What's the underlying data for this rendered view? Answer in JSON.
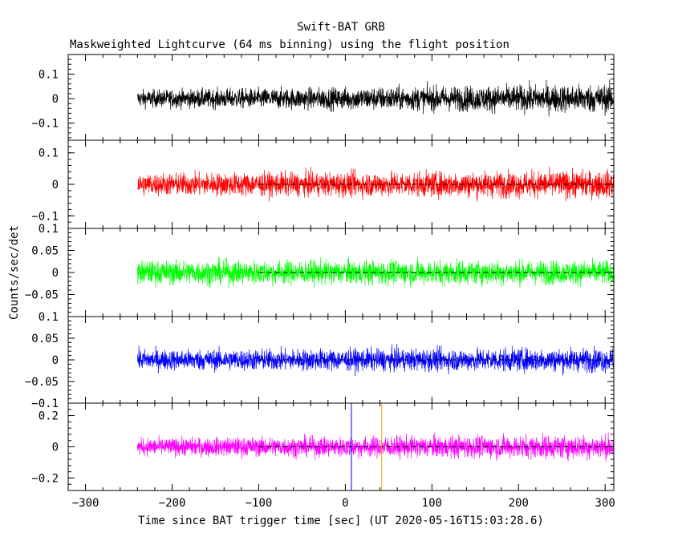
{
  "chart_data": {
    "type": "line",
    "title": "Swift-BAT GRB",
    "subtitle": "Maskweighted Lightcurve (64 ms binning) using the flight position",
    "xlabel": "Time since BAT trigger time [sec] (UT 2020-05-16T15:03:28.6)",
    "ylabel": "Counts/sec/det",
    "xlim": [
      -320,
      310
    ],
    "xticks": [
      -300,
      -200,
      -100,
      0,
      100,
      200,
      300
    ],
    "xtick_labels": [
      "-300",
      "-200",
      "-100",
      "0",
      "100",
      "200",
      "300"
    ],
    "data_range": [
      -240,
      310
    ],
    "binning_s": 0.064,
    "grid": false,
    "markers": [
      {
        "x": 7,
        "color": "#0000ff"
      },
      {
        "x": 42,
        "color": "#ffa500"
      }
    ],
    "panels": [
      {
        "color": "#000000",
        "ylim": [
          -0.17,
          0.18
        ],
        "yticks": [
          -0.1,
          0,
          0.1
        ],
        "ytick_labels": [
          "-0.1",
          "0",
          "0.1"
        ],
        "baseline": null,
        "noise_start": 0.045,
        "noise_end": 0.075
      },
      {
        "color": "#ff0000",
        "ylim": [
          -0.14,
          0.14
        ],
        "yticks": [
          -0.1,
          0,
          0.1
        ],
        "ytick_labels": [
          "-0.1",
          "0",
          "0.1"
        ],
        "baseline": {
          "from": -100,
          "value": 0
        },
        "noise_start": 0.045,
        "noise_end": 0.055
      },
      {
        "color": "#00ff00",
        "ylim": [
          -0.1,
          0.1
        ],
        "yticks": [
          -0.05,
          0,
          0.05,
          0.1
        ],
        "ytick_labels": [
          "-0.05",
          "0",
          "0.05",
          "0.1"
        ],
        "baseline": {
          "from": -100,
          "value": 0
        },
        "noise_start": 0.035,
        "noise_end": 0.035
      },
      {
        "color": "#0000ff",
        "ylim": [
          -0.1,
          0.1
        ],
        "yticks": [
          -0.1,
          -0.05,
          0,
          0.05,
          0.1
        ],
        "ytick_labels": [
          "-0.1",
          "-0.05",
          "0",
          "0.05",
          "0.1"
        ],
        "baseline": {
          "from": -100,
          "value": 0
        },
        "noise_start": 0.03,
        "noise_end": 0.035
      },
      {
        "color": "#ff00ff",
        "ylim": [
          -0.28,
          0.28
        ],
        "yticks": [
          -0.2,
          0,
          0.2
        ],
        "ytick_labels": [
          "-0.2",
          "0",
          "0.2"
        ],
        "baseline": {
          "from": -100,
          "value": 0
        },
        "noise_start": 0.07,
        "noise_end": 0.1
      }
    ]
  }
}
